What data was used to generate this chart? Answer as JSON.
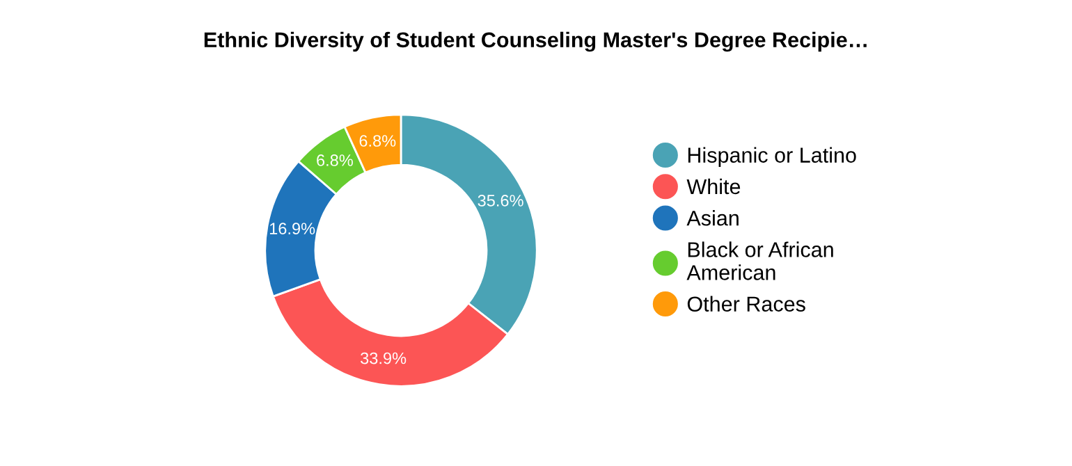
{
  "chart_data": {
    "type": "donut",
    "title": "Ethnic Diversity of Student Counseling Master's Degree Recipie…",
    "categories": [
      "Hispanic or Latino",
      "White",
      "Asian",
      "Black or African\nAmerican",
      "Other Races"
    ],
    "values": [
      35.6,
      33.9,
      16.9,
      6.8,
      6.8
    ],
    "colors": [
      "#4aa3b5",
      "#fc5555",
      "#1f74bb",
      "#66cc2f",
      "#ff9a0a"
    ],
    "value_labels": [
      "35.6%",
      "33.9%",
      "16.9%",
      "6.8%",
      "6.8%"
    ],
    "legend": "right"
  }
}
